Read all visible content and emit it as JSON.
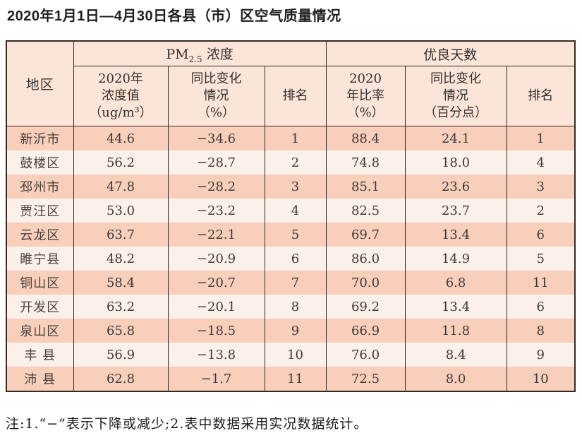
{
  "title": "2020年1月1日—4月30日各县（市）区空气质量情况",
  "footnote": "注:1.“−”表示下降或减少;2.表中数据采用实况数据统计。",
  "colors": {
    "row_odd": "#f8cfbb",
    "row_even": "#fcf0ea",
    "header_bg": "#fbe5d8",
    "grid_border": "#372a22"
  },
  "chart_data": {
    "type": "table",
    "title": "2020年1月1日—4月30日各县（市）区空气质量情况",
    "corner_header": "地区",
    "pm_group": {
      "prefix": "PM",
      "sub": "2.5",
      "suffix": " 浓度"
    },
    "good_group": "优良天数",
    "sub_headers": [
      "2020年\n浓度值\n（ug/m³）",
      "同比变化\n情况\n（%）",
      "排名",
      "2020\n年比率\n（%）",
      "同比变化\n情况\n（百分点）",
      "排名"
    ],
    "rows": [
      {
        "region": "新沂市",
        "pm_value": "44.6",
        "pm_change": "−34.6",
        "pm_rank": "1",
        "good_ratio": "88.4",
        "good_change": "24.1",
        "good_rank": "1"
      },
      {
        "region": "鼓楼区",
        "pm_value": "56.2",
        "pm_change": "−28.7",
        "pm_rank": "2",
        "good_ratio": "74.8",
        "good_change": "18.0",
        "good_rank": "4"
      },
      {
        "region": "邳州市",
        "pm_value": "47.8",
        "pm_change": "−28.2",
        "pm_rank": "3",
        "good_ratio": "85.1",
        "good_change": "23.6",
        "good_rank": "3"
      },
      {
        "region": "贾汪区",
        "pm_value": "53.0",
        "pm_change": "−23.2",
        "pm_rank": "4",
        "good_ratio": "82.5",
        "good_change": "23.7",
        "good_rank": "2"
      },
      {
        "region": "云龙区",
        "pm_value": "63.7",
        "pm_change": "−22.1",
        "pm_rank": "5",
        "good_ratio": "69.7",
        "good_change": "13.4",
        "good_rank": "6"
      },
      {
        "region": "睢宁县",
        "pm_value": "48.2",
        "pm_change": "−20.9",
        "pm_rank": "6",
        "good_ratio": "86.0",
        "good_change": "14.9",
        "good_rank": "5"
      },
      {
        "region": "铜山区",
        "pm_value": "58.4",
        "pm_change": "−20.7",
        "pm_rank": "7",
        "good_ratio": "70.0",
        "good_change": "6.8",
        "good_rank": "11"
      },
      {
        "region": "开发区",
        "pm_value": "63.2",
        "pm_change": "−20.1",
        "pm_rank": "8",
        "good_ratio": "69.2",
        "good_change": "13.4",
        "good_rank": "6"
      },
      {
        "region": "泉山区",
        "pm_value": "65.8",
        "pm_change": "−18.5",
        "pm_rank": "9",
        "good_ratio": "66.9",
        "good_change": "11.8",
        "good_rank": "8"
      },
      {
        "region": "丰 县",
        "pm_value": "56.9",
        "pm_change": "−13.8",
        "pm_rank": "10",
        "good_ratio": "76.0",
        "good_change": "8.4",
        "good_rank": "9"
      },
      {
        "region": "沛 县",
        "pm_value": "62.8",
        "pm_change": "−1.7",
        "pm_rank": "11",
        "good_ratio": "72.5",
        "good_change": "8.0",
        "good_rank": "10"
      }
    ]
  }
}
